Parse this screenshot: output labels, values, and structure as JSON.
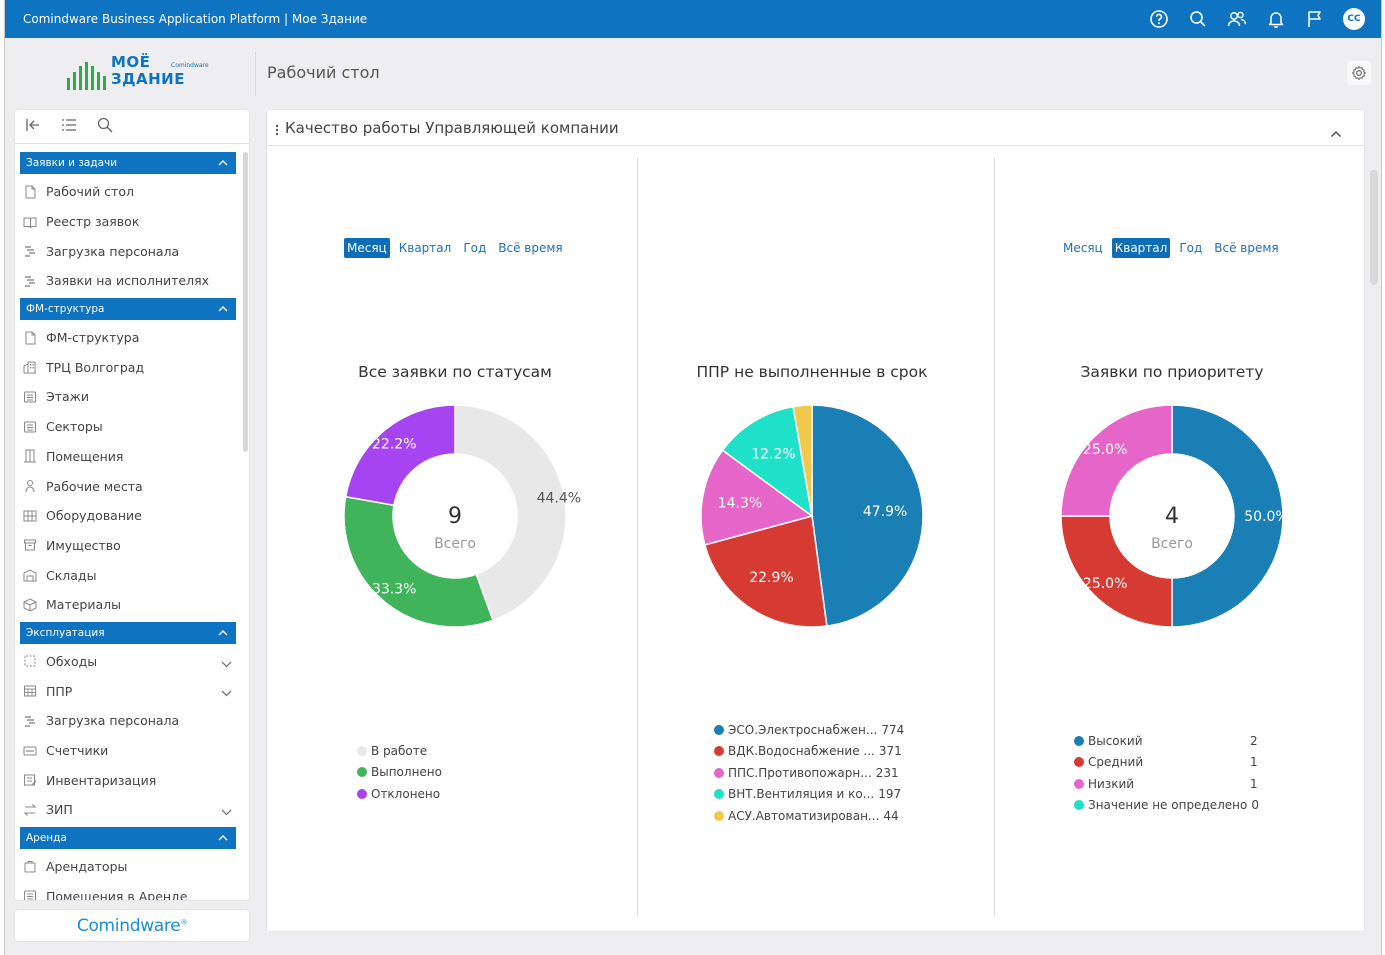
{
  "app": {
    "title": "Comindware Business Application Platform | Мое Здание",
    "avatar_initials": "CC",
    "icons": [
      "help-icon",
      "search-icon",
      "users-icon",
      "bell-icon",
      "flag-icon"
    ]
  },
  "logo": {
    "line1": "МОЁ",
    "line2": "ЗДАНИЕ",
    "sub": "Comindware"
  },
  "header": {
    "page_title": "Рабочий стол"
  },
  "sidebar": {
    "groups": [
      {
        "label": "Заявки и задачи",
        "items": [
          {
            "label": "Рабочий стол",
            "icon": "document-icon"
          },
          {
            "label": "Реестр заявок",
            "icon": "book-icon"
          },
          {
            "label": "Загрузка персонала",
            "icon": "gantt-icon"
          },
          {
            "label": "Заявки на исполнителях",
            "icon": "gantt-icon"
          }
        ]
      },
      {
        "label": "ФМ-структура",
        "items": [
          {
            "label": "ФМ-структура",
            "icon": "document-icon"
          },
          {
            "label": "ТРЦ Волгоград",
            "icon": "building-icon"
          },
          {
            "label": "Этажи",
            "icon": "list-icon"
          },
          {
            "label": "Секторы",
            "icon": "list-icon"
          },
          {
            "label": "Помещения",
            "icon": "door-icon"
          },
          {
            "label": "Рабочие места",
            "icon": "person-icon"
          },
          {
            "label": "Оборудование",
            "icon": "equipment-icon"
          },
          {
            "label": "Имущество",
            "icon": "box-icon"
          },
          {
            "label": "Склады",
            "icon": "warehouse-icon"
          },
          {
            "label": "Материалы",
            "icon": "cube-icon"
          }
        ]
      },
      {
        "label": "Эксплуатация",
        "items": [
          {
            "label": "Обходы",
            "icon": "route-icon",
            "expandable": true
          },
          {
            "label": "ППР",
            "icon": "calendar-icon",
            "expandable": true
          },
          {
            "label": "Загрузка персонала",
            "icon": "gantt-icon"
          },
          {
            "label": "Счетчики",
            "icon": "counter-icon"
          },
          {
            "label": "Инвентаризация",
            "icon": "inventory-icon"
          },
          {
            "label": "ЗИП",
            "icon": "swap-icon",
            "expandable": true
          }
        ]
      },
      {
        "label": "Аренда",
        "items": [
          {
            "label": "Арендаторы",
            "icon": "tenant-icon"
          },
          {
            "label": "Помещения в Аренде",
            "icon": "list-icon"
          }
        ]
      }
    ]
  },
  "brand": {
    "text": "Comindware",
    "mark": "®"
  },
  "panel": {
    "title": "Качество работы Управляющей компании"
  },
  "widgets": [
    {
      "tabs": [
        "Месяц",
        "Квартал",
        "Год",
        "Всё время"
      ],
      "active_tab": 0,
      "title": "Все заявки по статусам",
      "center_value": "9",
      "center_label": "Всего",
      "legend": [
        {
          "label": "В работе",
          "value": ""
        },
        {
          "label": "Выполнено",
          "value": ""
        },
        {
          "label": "Отклонено",
          "value": ""
        }
      ]
    },
    {
      "tabs": [],
      "active_tab": -1,
      "title": "ППР не выполненные в срок",
      "center_value": "",
      "center_label": "",
      "legend": [
        {
          "label": "ЭСО.Электроснабжен...",
          "value": "774"
        },
        {
          "label": "ВДК.Водоснабжение ...",
          "value": "371"
        },
        {
          "label": "ППС.Противопожарн...",
          "value": "231"
        },
        {
          "label": "ВНТ.Вентиляция и ко...",
          "value": "197"
        },
        {
          "label": "АСУ.Автоматизирован...",
          "value": "44"
        }
      ]
    },
    {
      "tabs": [
        "Месяц",
        "Квартал",
        "Год",
        "Всё время"
      ],
      "active_tab": 1,
      "title": "Заявки по приоритету",
      "center_value": "4",
      "center_label": "Всего",
      "legend": [
        {
          "label": "Высокий",
          "value": "2"
        },
        {
          "label": "Средний",
          "value": "1"
        },
        {
          "label": "Низкий",
          "value": "1"
        },
        {
          "label": "Значение не определено",
          "value": "0"
        }
      ]
    }
  ],
  "chart_data": [
    {
      "type": "pie",
      "title": "Все заявки по статусам",
      "donut": true,
      "total": 9,
      "categories": [
        "В работе",
        "Выполнено",
        "Отклонено"
      ],
      "values": [
        4,
        3,
        2
      ],
      "labels": [
        "44.4%",
        "33.3%",
        "22.2%"
      ],
      "colors": [
        "#e8e8e8",
        "#3fb45a",
        "#a744f2"
      ],
      "label_colors": [
        "#555555",
        "#ffffff",
        "#ffffff"
      ],
      "legend_position": "bottom"
    },
    {
      "type": "pie",
      "title": "ППР не выполненные в срок",
      "donut": false,
      "categories": [
        "ЭСО.Электроснабжен...",
        "ВДК.Водоснабжение ...",
        "ППС.Противопожарн...",
        "ВНТ.Вентиляция и ко...",
        "АСУ.Автоматизирован..."
      ],
      "values": [
        774,
        371,
        231,
        197,
        44
      ],
      "labels": [
        "47.9%",
        "22.9%",
        "14.3%",
        "12.2%",
        ""
      ],
      "colors": [
        "#1a7fb5",
        "#d63b33",
        "#e566c8",
        "#1fe0c8",
        "#f0c84a"
      ],
      "label_colors": [
        "#ffffff",
        "#ffffff",
        "#ffffff",
        "#ffffff",
        "#ffffff"
      ],
      "legend_position": "bottom"
    },
    {
      "type": "pie",
      "title": "Заявки по приоритету",
      "donut": true,
      "total": 4,
      "categories": [
        "Высокий",
        "Средний",
        "Низкий",
        "Значение не определено"
      ],
      "values": [
        2,
        1,
        1,
        0
      ],
      "labels": [
        "50.0%",
        "25.0%",
        "25.0%",
        ""
      ],
      "colors": [
        "#1a7fb5",
        "#d63b33",
        "#e566c8",
        "#1fe0c8"
      ],
      "label_colors": [
        "#ffffff",
        "#ffffff",
        "#ffffff",
        "#ffffff"
      ],
      "legend_position": "bottom"
    }
  ]
}
